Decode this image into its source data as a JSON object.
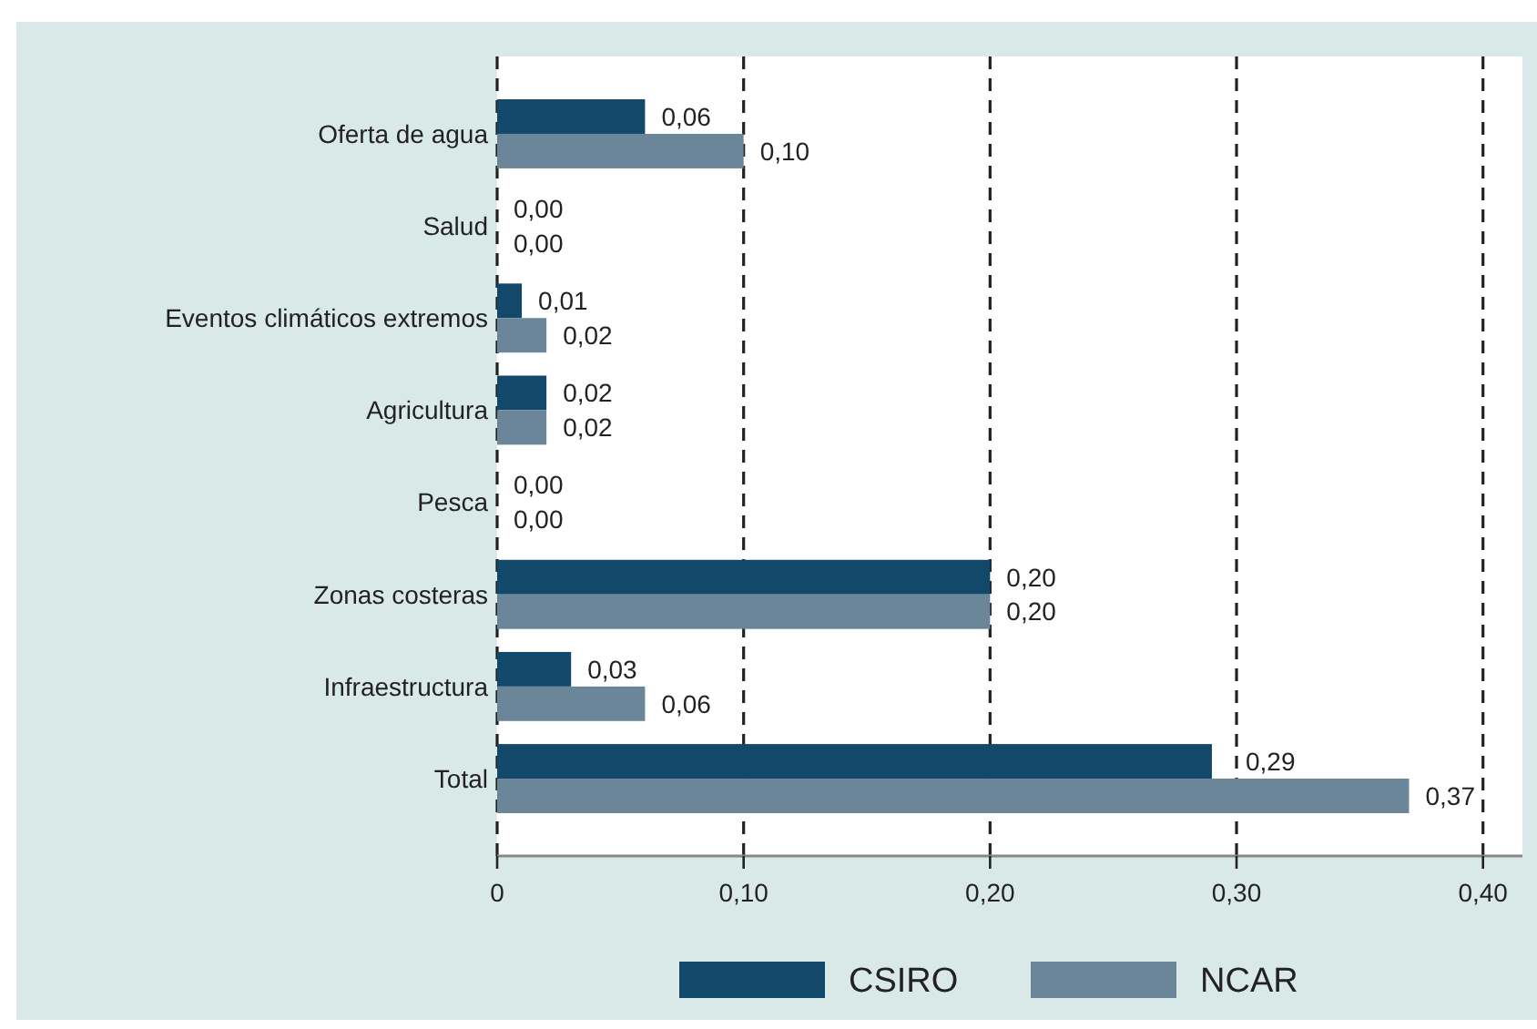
{
  "chart_data": {
    "type": "bar",
    "orientation": "horizontal",
    "categories": [
      "Oferta de agua",
      "Salud",
      "Eventos climáticos extremos",
      "Agricultura",
      "Pesca",
      "Zonas costeras",
      "Infraestructura",
      "Total"
    ],
    "series": [
      {
        "name": "CSIRO",
        "color": "#12496b",
        "values": [
          0.06,
          0.0,
          0.01,
          0.02,
          0.0,
          0.2,
          0.03,
          0.29
        ],
        "value_labels": [
          "0,06",
          "0,00",
          "0,01",
          "0,02",
          "0,00",
          "0,20",
          "0,03",
          "0,29"
        ]
      },
      {
        "name": "NCAR",
        "color": "#6b8599",
        "values": [
          0.1,
          0.0,
          0.02,
          0.02,
          0.0,
          0.2,
          0.06,
          0.37
        ],
        "value_labels": [
          "0,10",
          "0,00",
          "0,02",
          "0,02",
          "0,00",
          "0,20",
          "0,06",
          "0,37"
        ]
      }
    ],
    "xlim": [
      0,
      0.416
    ],
    "xticks": [
      0,
      {
        "value": 0.1,
        "label": "0,10"
      },
      {
        "value": 0.2,
        "label": "0,20"
      },
      {
        "value": 0.3,
        "label": "0,30"
      },
      {
        "value": 0.4,
        "label": "0,40"
      }
    ],
    "grid": "x",
    "line_style": "dashed",
    "legend": "bottom"
  }
}
